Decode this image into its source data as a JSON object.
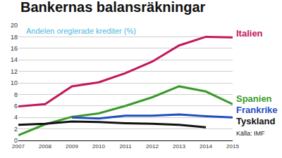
{
  "chart_data": {
    "type": "line",
    "title": "Bankernas balansräkningar",
    "subtitle": "Andelen oreglerade krediter (%)",
    "annotations": [
      "Källa: IMF"
    ],
    "x": [
      2007,
      2008,
      2009,
      2010,
      2011,
      2012,
      2013,
      2014,
      2015
    ],
    "series": [
      {
        "name": "Italien",
        "color": "#c2185b",
        "values": [
          5.9,
          6.3,
          9.4,
          10.1,
          11.7,
          13.7,
          16.5,
          18.0,
          17.9
        ]
      },
      {
        "name": "Spanien",
        "color": "#3a9a2a",
        "values": [
          0.9,
          2.8,
          4.1,
          4.7,
          6.0,
          7.5,
          9.4,
          8.5,
          6.3
        ]
      },
      {
        "name": "Frankrike",
        "color": "#1f4fbf",
        "values": [
          null,
          null,
          4.0,
          3.8,
          4.3,
          4.3,
          4.5,
          4.2,
          4.0
        ]
      },
      {
        "name": "Tyskland",
        "color": "#111111",
        "values": [
          2.7,
          2.9,
          3.3,
          3.2,
          3.0,
          2.9,
          2.7,
          2.3,
          null
        ]
      }
    ],
    "xlim": [
      2007,
      2015
    ],
    "xticks": [
      2007,
      2008,
      2009,
      2010,
      2011,
      2012,
      2013,
      2014,
      2015
    ],
    "ylim": [
      0,
      20
    ],
    "yticks": [
      0,
      2,
      4,
      6,
      8,
      10,
      12,
      14,
      16,
      18,
      20
    ],
    "grid": true
  }
}
